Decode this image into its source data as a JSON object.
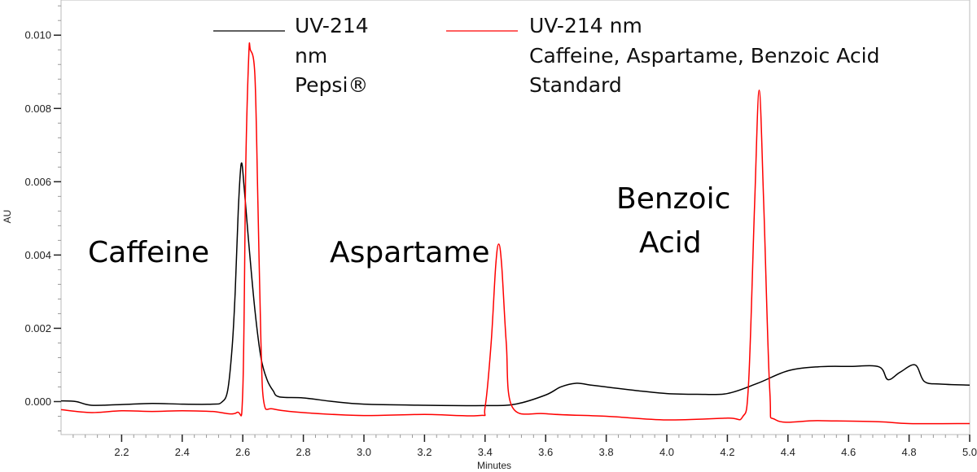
{
  "chart_data": {
    "type": "line",
    "title": "",
    "xlabel": "Minutes",
    "ylabel": "AU",
    "xlim": [
      2.0,
      5.0
    ],
    "ylim": [
      -0.0009,
      0.01096
    ],
    "x_ticks": [
      "2.2",
      "2.4",
      "2.6",
      "2.8",
      "3.0",
      "3.2",
      "3.4",
      "3.6",
      "3.8",
      "4.0",
      "4.2",
      "4.4",
      "4.6",
      "4.8",
      "5.0"
    ],
    "y_ticks": [
      "0.000",
      "0.002",
      "0.004",
      "0.006",
      "0.008",
      "0.010"
    ],
    "grid": false,
    "legend_position": "top",
    "colors": {
      "pepsi": "#000000",
      "standard": "#ff0000"
    },
    "series": [
      {
        "name": "UV-214 nm Pepsi®",
        "legend_lines": [
          "UV-214",
          "nm",
          "Pepsi®"
        ],
        "color": "#000000",
        "points": [
          [
            2.0,
            2e-05
          ],
          [
            2.05,
            0.0
          ],
          [
            2.1,
            -0.0001
          ],
          [
            2.2,
            -8e-05
          ],
          [
            2.3,
            -5e-05
          ],
          [
            2.4,
            -7e-05
          ],
          [
            2.5,
            -7e-05
          ],
          [
            2.53,
            -2e-05
          ],
          [
            2.55,
            0.0003
          ],
          [
            2.565,
            0.0015
          ],
          [
            2.575,
            0.003
          ],
          [
            2.585,
            0.0052
          ],
          [
            2.595,
            0.0065
          ],
          [
            2.605,
            0.0058
          ],
          [
            2.62,
            0.0043
          ],
          [
            2.64,
            0.0025
          ],
          [
            2.66,
            0.0012
          ],
          [
            2.68,
            0.0006
          ],
          [
            2.7,
            0.0003
          ],
          [
            2.72,
            0.00013
          ],
          [
            2.8,
            0.0001
          ],
          [
            2.9,
            0.0
          ],
          [
            3.0,
            -7e-05
          ],
          [
            3.2,
            -0.0001
          ],
          [
            3.4,
            -0.00011
          ],
          [
            3.5,
            -7e-05
          ],
          [
            3.6,
            0.00018
          ],
          [
            3.65,
            0.0004
          ],
          [
            3.7,
            0.0005
          ],
          [
            3.75,
            0.00045
          ],
          [
            3.8,
            0.0004
          ],
          [
            3.9,
            0.0003
          ],
          [
            4.0,
            0.00022
          ],
          [
            4.1,
            0.0002
          ],
          [
            4.2,
            0.00022
          ],
          [
            4.3,
            0.0005
          ],
          [
            4.4,
            0.00084
          ],
          [
            4.5,
            0.00095
          ],
          [
            4.6,
            0.00096
          ],
          [
            4.7,
            0.00095
          ],
          [
            4.73,
            0.0006
          ],
          [
            4.77,
            0.0008
          ],
          [
            4.82,
            0.001
          ],
          [
            4.85,
            0.00055
          ],
          [
            4.9,
            0.00048
          ],
          [
            5.0,
            0.00045
          ]
        ]
      },
      {
        "name": "UV-214 nm Caffeine, Aspartame, Benzoic Acid Standard",
        "legend_lines": [
          "UV-214 nm",
          "Caffeine, Aspartame, Benzoic Acid",
          "Standard"
        ],
        "color": "#ff0000",
        "points": [
          [
            2.0,
            -0.00022
          ],
          [
            2.1,
            -0.0003
          ],
          [
            2.2,
            -0.00025
          ],
          [
            2.3,
            -0.00027
          ],
          [
            2.4,
            -0.00025
          ],
          [
            2.5,
            -0.00027
          ],
          [
            2.58,
            -0.0003
          ],
          [
            2.6,
            0.0003
          ],
          [
            2.61,
            0.0065
          ],
          [
            2.62,
            0.0095
          ],
          [
            2.625,
            0.0096
          ],
          [
            2.64,
            0.0089
          ],
          [
            2.65,
            0.0054
          ],
          [
            2.66,
            0.0016
          ],
          [
            2.67,
            -4e-05
          ],
          [
            2.7,
            -0.0002
          ],
          [
            2.8,
            -0.0003
          ],
          [
            3.0,
            -0.00038
          ],
          [
            3.2,
            -0.00035
          ],
          [
            3.38,
            -0.00038
          ],
          [
            3.4,
            -0.00015
          ],
          [
            3.42,
            0.0016
          ],
          [
            3.435,
            0.0037
          ],
          [
            3.445,
            0.0043
          ],
          [
            3.455,
            0.0037
          ],
          [
            3.47,
            0.0016
          ],
          [
            3.49,
            -0.00015
          ],
          [
            3.6,
            -0.00033
          ],
          [
            3.8,
            -0.0004
          ],
          [
            4.0,
            -0.0005
          ],
          [
            4.2,
            -0.00045
          ],
          [
            4.25,
            -0.00042
          ],
          [
            4.27,
            0.0005
          ],
          [
            4.29,
            0.0054
          ],
          [
            4.305,
            0.0085
          ],
          [
            4.32,
            0.0054
          ],
          [
            4.34,
            0.0003
          ],
          [
            4.36,
            -0.0005
          ],
          [
            4.5,
            -0.00052
          ],
          [
            4.7,
            -0.00055
          ],
          [
            4.8,
            -0.0006
          ],
          [
            5.0,
            -0.0006
          ]
        ]
      }
    ],
    "annotations": [
      {
        "text": "Caffeine",
        "lines": [
          "Caffeine"
        ]
      },
      {
        "text": "Aspartame",
        "lines": [
          "Aspartame"
        ]
      },
      {
        "text": "Benzoic Acid",
        "lines": [
          "Benzoic",
          "Acid"
        ]
      }
    ]
  }
}
